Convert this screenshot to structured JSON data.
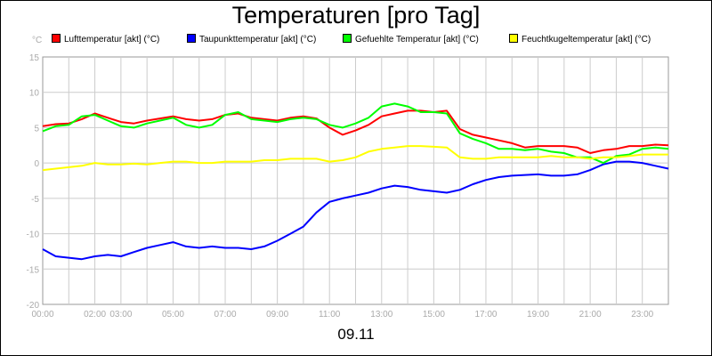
{
  "title": "Temperaturen [pro Tag]",
  "unit_label": "°C",
  "x_caption": "09.11",
  "legend": [
    {
      "label": "Lufttemperatur [akt] (°C)",
      "color": "#ff0000"
    },
    {
      "label": "Taupunkttemperatur [akt] (°C)",
      "color": "#0000ff"
    },
    {
      "label": "Gefuehlte Temperatur [akt] (°C)",
      "color": "#00ff00"
    },
    {
      "label": "Feuchtkugeltemperatur [akt] (°C)",
      "color": "#ffff00"
    }
  ],
  "chart_data": {
    "type": "line",
    "title": "Temperaturen [pro Tag]",
    "xlabel": "09.11",
    "ylabel": "°C",
    "xlim": [
      0,
      24
    ],
    "ylim": [
      -20,
      15
    ],
    "grid": true,
    "legend_position": "top",
    "x_ticks": [
      "00:00",
      "02:00",
      "03:00",
      "05:00",
      "07:00",
      "09:00",
      "11:00",
      "13:00",
      "15:00",
      "17:00",
      "19:00",
      "21:00",
      "23:00"
    ],
    "y_ticks": [
      "15",
      "10",
      "5",
      "0",
      "-5",
      "-10",
      "-15",
      "-20"
    ],
    "x": [
      0,
      0.5,
      1,
      1.5,
      2,
      2.5,
      3,
      3.5,
      4,
      4.5,
      5,
      5.5,
      6,
      6.5,
      7,
      7.5,
      8,
      8.5,
      9,
      9.5,
      10,
      10.5,
      11,
      11.5,
      12,
      12.5,
      13,
      13.5,
      14,
      14.5,
      15,
      15.5,
      16,
      16.5,
      17,
      17.5,
      18,
      18.5,
      19,
      19.5,
      20,
      20.5,
      21,
      21.5,
      22,
      22.5,
      23,
      23.5,
      24
    ],
    "series": [
      {
        "name": "Lufttemperatur [akt] (°C)",
        "color": "#ff0000",
        "values": [
          5.2,
          5.5,
          5.6,
          6.2,
          7.0,
          6.4,
          5.8,
          5.6,
          6.0,
          6.3,
          6.6,
          6.2,
          6.0,
          6.2,
          6.8,
          7.0,
          6.4,
          6.2,
          6.0,
          6.4,
          6.6,
          6.3,
          5.0,
          4.0,
          4.6,
          5.4,
          6.6,
          7.0,
          7.4,
          7.4,
          7.2,
          7.4,
          4.8,
          4.0,
          3.6,
          3.2,
          2.8,
          2.2,
          2.4,
          2.4,
          2.4,
          2.2,
          1.4,
          1.8,
          2.0,
          2.4,
          2.4,
          2.6,
          2.5
        ]
      },
      {
        "name": "Taupunkttemperatur [akt] (°C)",
        "color": "#0000ff",
        "values": [
          -12.2,
          -13.2,
          -13.4,
          -13.6,
          -13.2,
          -13.0,
          -13.2,
          -12.6,
          -12.0,
          -11.6,
          -11.2,
          -11.8,
          -12.0,
          -11.8,
          -12.0,
          -12.0,
          -12.2,
          -11.8,
          -11.0,
          -10.0,
          -9.0,
          -7.0,
          -5.5,
          -5.0,
          -4.6,
          -4.2,
          -3.6,
          -3.2,
          -3.4,
          -3.8,
          -4.0,
          -4.2,
          -3.8,
          -3.0,
          -2.4,
          -2.0,
          -1.8,
          -1.7,
          -1.6,
          -1.8,
          -1.8,
          -1.6,
          -1.0,
          -0.2,
          0.2,
          0.2,
          0.0,
          -0.4,
          -0.8
        ]
      },
      {
        "name": "Gefuehlte Temperatur [akt] (°C)",
        "color": "#00ff00",
        "values": [
          4.5,
          5.2,
          5.4,
          6.6,
          6.8,
          6.0,
          5.2,
          5.0,
          5.6,
          6.0,
          6.4,
          5.4,
          5.0,
          5.4,
          6.8,
          7.2,
          6.2,
          6.0,
          5.8,
          6.2,
          6.4,
          6.2,
          5.4,
          5.0,
          5.6,
          6.4,
          8.0,
          8.4,
          8.0,
          7.2,
          7.2,
          7.0,
          4.2,
          3.4,
          2.8,
          2.0,
          2.0,
          1.8,
          2.0,
          1.6,
          1.4,
          0.8,
          0.8,
          0.0,
          1.0,
          1.2,
          2.0,
          2.2,
          2.0
        ]
      },
      {
        "name": "Feuchtkugeltemperatur [akt] (°C)",
        "color": "#ffff00",
        "values": [
          -1.0,
          -0.8,
          -0.6,
          -0.4,
          0.0,
          -0.2,
          -0.2,
          -0.1,
          -0.2,
          0.0,
          0.2,
          0.2,
          0.0,
          0.0,
          0.2,
          0.2,
          0.2,
          0.4,
          0.4,
          0.6,
          0.6,
          0.6,
          0.2,
          0.4,
          0.8,
          1.6,
          2.0,
          2.2,
          2.4,
          2.4,
          2.3,
          2.2,
          0.8,
          0.6,
          0.6,
          0.8,
          0.8,
          0.8,
          0.8,
          1.0,
          0.8,
          0.8,
          0.6,
          0.8,
          0.8,
          1.0,
          1.2,
          1.2,
          1.2
        ]
      }
    ]
  }
}
